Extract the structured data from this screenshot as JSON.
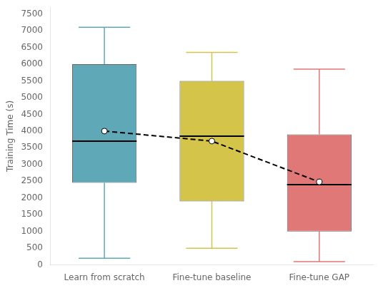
{
  "chart_data": {
    "type": "box",
    "ylabel": "Training Time (s)",
    "categories": [
      "Learn from scratch",
      "Fine-tune baseline",
      "Fine-tune GAP"
    ],
    "whisker_low": [
      200,
      500,
      100
    ],
    "q1": [
      2450,
      1900,
      1000
    ],
    "median": [
      3700,
      3850,
      2400
    ],
    "q3": [
      6000,
      5500,
      3900
    ],
    "whisker_high": [
      7100,
      6350,
      5850
    ],
    "mean": [
      4000,
      3700,
      2480
    ],
    "colors": [
      "#5fa8b8",
      "#d4c44a",
      "#e07878"
    ],
    "ylim": [
      0,
      7700
    ],
    "yticks": [
      0,
      500,
      1000,
      1500,
      2000,
      2500,
      3000,
      3500,
      4000,
      4500,
      5000,
      5500,
      6000,
      6500,
      7000,
      7500
    ],
    "grid": false
  }
}
